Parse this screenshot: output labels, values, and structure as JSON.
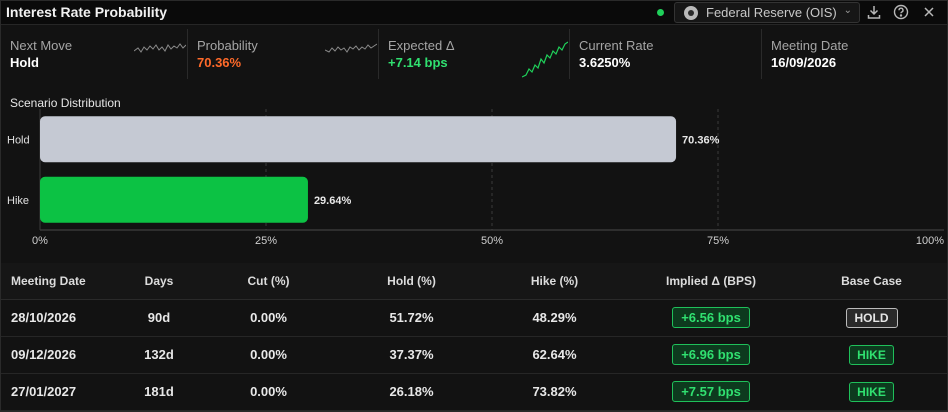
{
  "header": {
    "title": "Interest Rate Probability",
    "source": "Federal Reserve (OIS)",
    "live_color": "#1fd05a"
  },
  "stats": [
    {
      "label": "Next Move",
      "value": "Hold",
      "color": "#ffffff"
    },
    {
      "label": "Probability",
      "value": "70.36%",
      "color": "#ff6a2a"
    },
    {
      "label": "Expected Δ",
      "value": "+7.14 bps",
      "color": "#30e070"
    },
    {
      "label": "Current Rate",
      "value": "3.6250%",
      "color": "#ffffff"
    },
    {
      "label": "Meeting Date",
      "value": "16/09/2026",
      "color": "#ffffff"
    }
  ],
  "scenario": {
    "title": "Scenario Distribution"
  },
  "chart_data": {
    "type": "bar",
    "orientation": "horizontal",
    "categories": [
      "Hold",
      "Hike"
    ],
    "values": [
      70.36,
      29.64
    ],
    "value_labels": [
      "70.36%",
      "29.64%"
    ],
    "colors": [
      "#c5c9d3",
      "#0cc244"
    ],
    "xlim": [
      0,
      100
    ],
    "xticks": [
      "0%",
      "25%",
      "50%",
      "75%",
      "100%"
    ],
    "grid": true
  },
  "table": {
    "headers": [
      "Meeting Date",
      "Days",
      "Cut (%)",
      "Hold (%)",
      "Hike (%)",
      "Implied Δ (BPS)",
      "Base Case"
    ],
    "rows": [
      {
        "date": "28/10/2026",
        "days": "90d",
        "cut": "0.00%",
        "hold": "51.72%",
        "hike": "48.29%",
        "implied": "+6.56 bps",
        "base": "HOLD"
      },
      {
        "date": "09/12/2026",
        "days": "132d",
        "cut": "0.00%",
        "hold": "37.37%",
        "hike": "62.64%",
        "implied": "+6.96 bps",
        "base": "HIKE"
      },
      {
        "date": "27/01/2027",
        "days": "181d",
        "cut": "0.00%",
        "hold": "26.18%",
        "hike": "73.82%",
        "implied": "+7.57 bps",
        "base": "HIKE"
      }
    ]
  }
}
